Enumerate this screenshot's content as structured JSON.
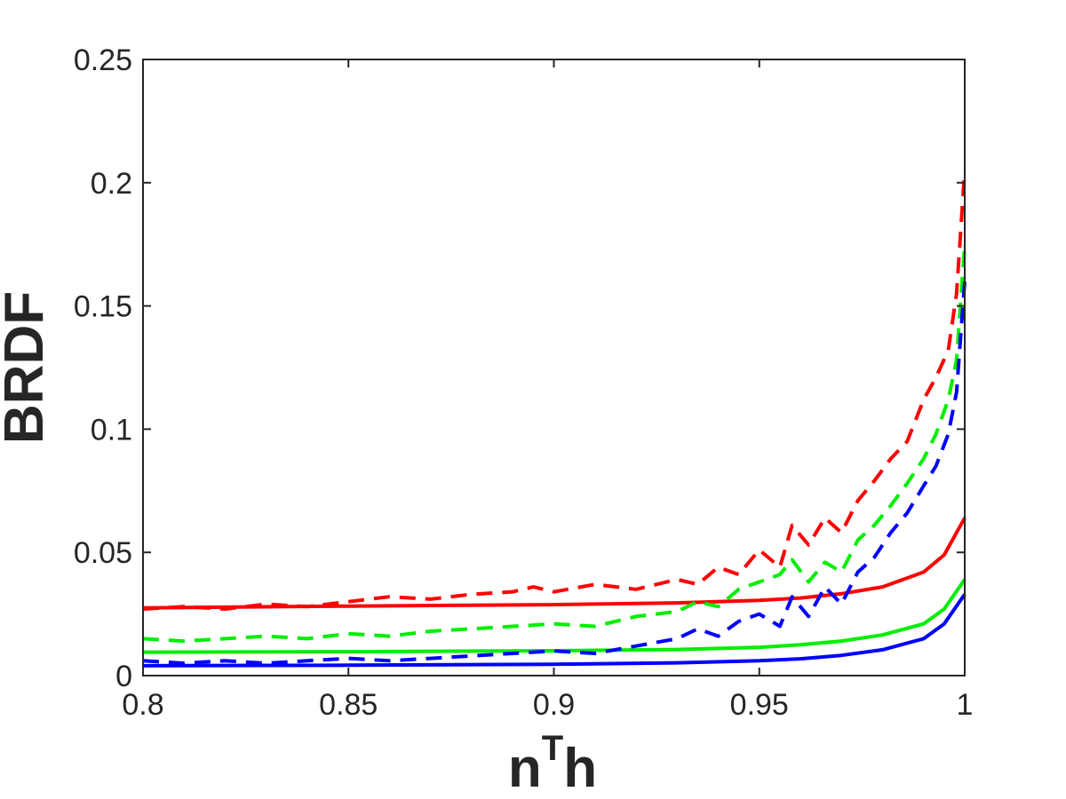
{
  "chart_data": {
    "type": "line",
    "xlabel": {
      "base": "n",
      "sup": "T",
      "tail": "h"
    },
    "ylabel": "BRDF",
    "xlim": [
      0.8,
      1.0
    ],
    "ylim": [
      0,
      0.25
    ],
    "xticks": [
      0.8,
      0.85,
      0.9,
      0.95,
      1.0
    ],
    "xtick_labels": [
      "0.8",
      "0.85",
      "0.9",
      "0.95",
      "1"
    ],
    "yticks": [
      0,
      0.05,
      0.1,
      0.15,
      0.2,
      0.25
    ],
    "ytick_labels": [
      "0",
      "0.05",
      "0.1",
      "0.15",
      "0.2",
      "0.25"
    ],
    "grid": false,
    "box": true,
    "series": [
      {
        "color": "#ff0000",
        "style": "solid",
        "x": [
          0.8,
          0.85,
          0.9,
          0.93,
          0.95,
          0.96,
          0.97,
          0.98,
          0.99,
          0.995,
          1.0
        ],
        "y": [
          0.0275,
          0.0282,
          0.0288,
          0.0295,
          0.0305,
          0.0315,
          0.0332,
          0.036,
          0.042,
          0.049,
          0.064
        ]
      },
      {
        "color": "#00ee00",
        "style": "solid",
        "x": [
          0.8,
          0.85,
          0.9,
          0.93,
          0.95,
          0.96,
          0.97,
          0.98,
          0.99,
          0.995,
          1.0
        ],
        "y": [
          0.0095,
          0.0097,
          0.0101,
          0.0106,
          0.0115,
          0.0125,
          0.014,
          0.0165,
          0.021,
          0.027,
          0.039
        ]
      },
      {
        "color": "#0000ff",
        "style": "solid",
        "x": [
          0.8,
          0.85,
          0.9,
          0.93,
          0.95,
          0.96,
          0.97,
          0.98,
          0.99,
          0.995,
          1.0
        ],
        "y": [
          0.004,
          0.0042,
          0.0046,
          0.0052,
          0.006,
          0.0068,
          0.0082,
          0.0105,
          0.015,
          0.021,
          0.033
        ]
      },
      {
        "color": "#ff0000",
        "style": "dashed",
        "x": [
          0.8,
          0.81,
          0.82,
          0.83,
          0.84,
          0.85,
          0.86,
          0.87,
          0.88,
          0.89,
          0.895,
          0.9,
          0.91,
          0.92,
          0.93,
          0.935,
          0.94,
          0.945,
          0.95,
          0.955,
          0.958,
          0.962,
          0.966,
          0.97,
          0.974,
          0.978,
          0.982,
          0.986,
          0.99,
          0.993,
          0.996,
          0.998,
          1.0
        ],
        "y": [
          0.027,
          0.028,
          0.027,
          0.029,
          0.028,
          0.03,
          0.032,
          0.031,
          0.033,
          0.034,
          0.036,
          0.034,
          0.037,
          0.035,
          0.039,
          0.037,
          0.044,
          0.041,
          0.051,
          0.044,
          0.061,
          0.053,
          0.064,
          0.058,
          0.071,
          0.079,
          0.088,
          0.095,
          0.112,
          0.121,
          0.132,
          0.155,
          0.205
        ]
      },
      {
        "color": "#00ee00",
        "style": "dashed",
        "x": [
          0.8,
          0.81,
          0.82,
          0.83,
          0.84,
          0.85,
          0.86,
          0.87,
          0.88,
          0.89,
          0.9,
          0.91,
          0.92,
          0.93,
          0.935,
          0.94,
          0.945,
          0.95,
          0.955,
          0.958,
          0.962,
          0.966,
          0.97,
          0.974,
          0.978,
          0.982,
          0.986,
          0.99,
          0.993,
          0.996,
          0.998,
          1.0
        ],
        "y": [
          0.015,
          0.014,
          0.015,
          0.016,
          0.015,
          0.017,
          0.016,
          0.018,
          0.019,
          0.02,
          0.021,
          0.02,
          0.024,
          0.026,
          0.03,
          0.028,
          0.035,
          0.038,
          0.041,
          0.047,
          0.038,
          0.046,
          0.042,
          0.055,
          0.061,
          0.069,
          0.078,
          0.088,
          0.098,
          0.112,
          0.128,
          0.175
        ]
      },
      {
        "color": "#0000ff",
        "style": "dashed",
        "x": [
          0.8,
          0.81,
          0.82,
          0.83,
          0.84,
          0.85,
          0.86,
          0.87,
          0.88,
          0.89,
          0.9,
          0.91,
          0.92,
          0.93,
          0.935,
          0.94,
          0.945,
          0.95,
          0.955,
          0.958,
          0.962,
          0.966,
          0.97,
          0.974,
          0.978,
          0.982,
          0.986,
          0.99,
          0.993,
          0.996,
          0.998,
          1.0
        ],
        "y": [
          0.006,
          0.005,
          0.006,
          0.005,
          0.006,
          0.007,
          0.006,
          0.007,
          0.008,
          0.009,
          0.01,
          0.009,
          0.012,
          0.015,
          0.019,
          0.016,
          0.022,
          0.025,
          0.02,
          0.032,
          0.024,
          0.036,
          0.029,
          0.042,
          0.048,
          0.058,
          0.066,
          0.077,
          0.085,
          0.098,
          0.115,
          0.16
        ]
      }
    ]
  }
}
